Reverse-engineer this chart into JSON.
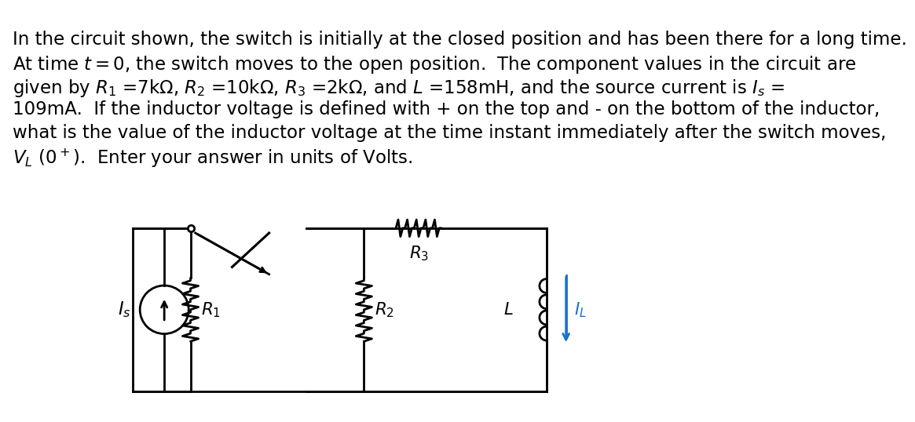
{
  "bg_color": "#ffffff",
  "text_color": "#000000",
  "line1": "In the circuit shown, the switch is initially at the closed position and has been there for a long time.",
  "line2": "At time $t = 0$, the switch moves to the open position.  The component values in the circuit are",
  "line3": "given by $R_1$ =7kΩ, $R_2$ =10kΩ, $R_3$ =2kΩ, and $L$ =158mH, and the source current is $I_s$ =",
  "line4": "109mA.  If the inductor voltage is defined with + on the top and - on the bottom of the inductor,",
  "line5": "what is the value of the inductor voltage at the time instant immediately after the switch moves,",
  "line6": "$V_L$ $(0^+)$.  Enter your answer in units of Volts.",
  "circuit_lw": 2.0,
  "IL_color": "#1a6fcc",
  "font_size": 16.5
}
